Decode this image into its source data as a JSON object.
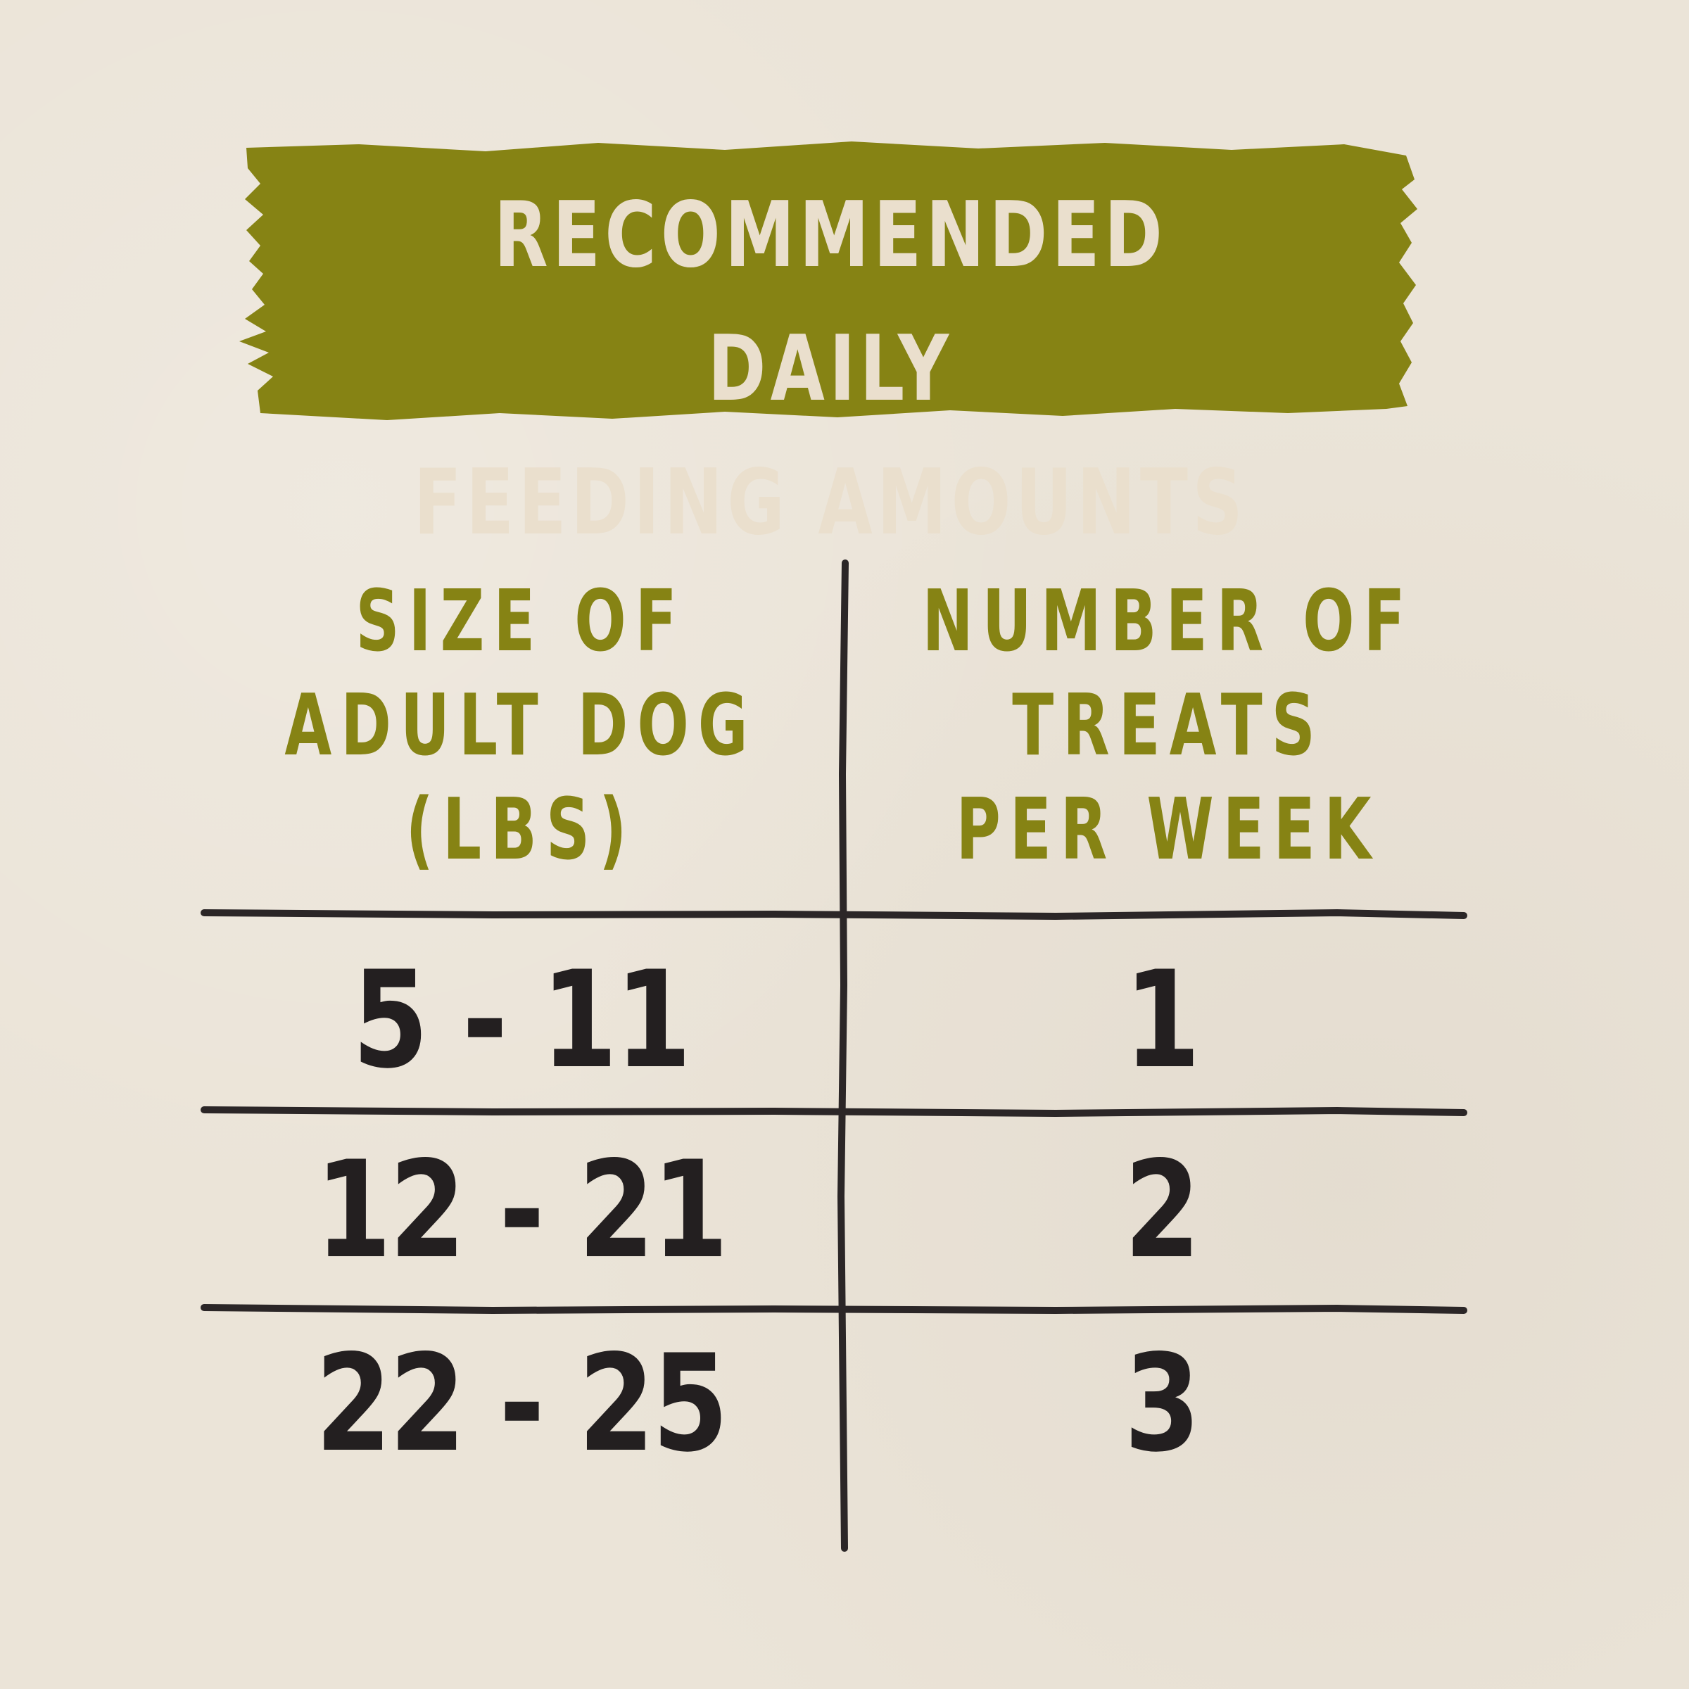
{
  "title": {
    "line1": "RECOMMENDED DAILY",
    "line2": "FEEDING AMOUNTS"
  },
  "table": {
    "headers": [
      "SIZE OF\nADULT DOG\n(LBS)",
      "NUMBER OF\nTREATS\nPER WEEK"
    ],
    "rows": [
      {
        "size": "5 - 11",
        "treats": "1"
      },
      {
        "size": "12 - 21",
        "treats": "2"
      },
      {
        "size": "22 - 25",
        "treats": "3"
      }
    ]
  },
  "colors": {
    "background": "#ebe4d8",
    "banner": "#868314",
    "banner_text": "#eadfcd",
    "header_text": "#868314",
    "body_text": "#231f20",
    "rule": "#2b2627"
  }
}
